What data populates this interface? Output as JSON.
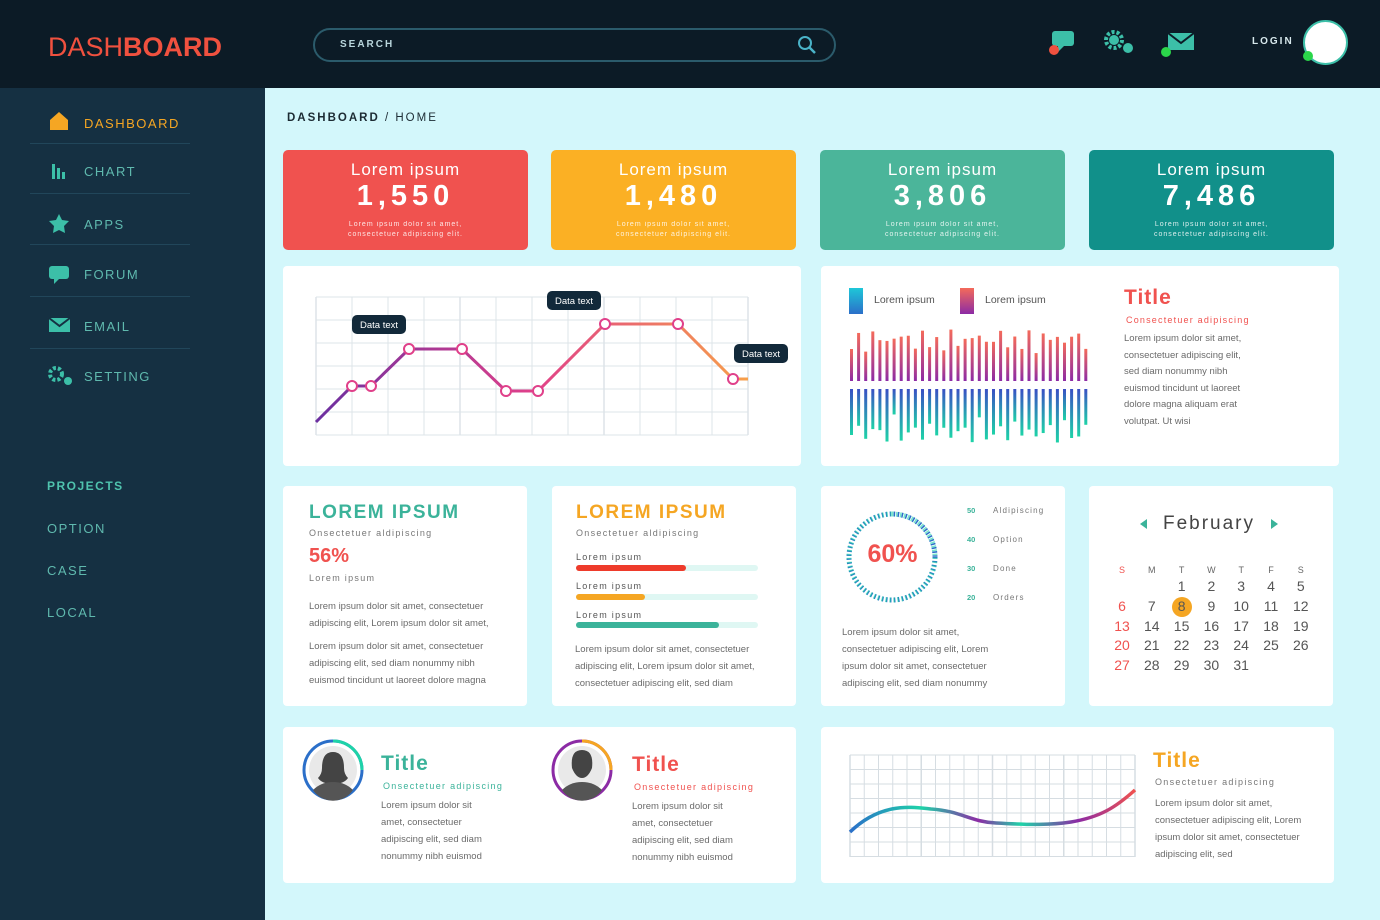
{
  "header": {
    "logo_light": "DASH",
    "logo_bold": "BOARD",
    "search": "SEARCH",
    "login": "LOGIN"
  },
  "sidebar": {
    "menu": [
      "DASHBOARD",
      "CHART",
      "APPS",
      "FORUM",
      "EMAIL",
      "SETTING"
    ],
    "projects_title": "PROJECTS",
    "projects": [
      "OPTION",
      "CASE",
      "LOCAL"
    ]
  },
  "breadcrumb": {
    "root": "DASHBOARD",
    "separator": "/",
    "current": "HOME"
  },
  "stats": [
    {
      "title": "Lorem ipsum",
      "value": "1,550",
      "text": "Lorem ipsum dolor sit amet, consectetuer adipiscing elit."
    },
    {
      "title": "Lorem ipsum",
      "value": "1,480",
      "text": "Lorem ipsum dolor sit amet, consectetuer adipiscing elit."
    },
    {
      "title": "Lorem ipsum",
      "value": "3,806",
      "text": "Lorem ipsum dolor sit amet, consectetuer adipiscing elit."
    },
    {
      "title": "Lorem ipsum",
      "value": "7,486",
      "text": "Lorem ipsum dolor sit amet, consectetuer adipiscing elit."
    }
  ],
  "line_panel": {
    "labels": [
      "Data text",
      "Data text",
      "Data text"
    ]
  },
  "bars_panel": {
    "legend": [
      "Lorem ipsum",
      "Lorem ipsum"
    ],
    "title": "Title",
    "subtitle": "Consectetuer adipiscing",
    "text": "Lorem ipsum dolor sit amet, consectetuer adipiscing elit, sed diam nonummy nibh euismod tincidunt ut laoreet dolore magna aliquam erat volutpat. Ut wisi"
  },
  "card1": {
    "title": "LOREM IPSUM",
    "subtitle": "Onsectetuer aldipiscing",
    "percent": "56%",
    "label": "Lorem ipsum",
    "paragraphs": [
      "Lorem ipsum dolor sit amet, consectetuer adipiscing elit, Lorem ipsum dolor sit amet,",
      "Lorem ipsum dolor sit amet, consectetuer adipiscing elit, sed diam nonummy nibh euismod tincidunt ut laoreet dolore magna"
    ]
  },
  "card2": {
    "title": "LOREM IPSUM",
    "subtitle": "Onsectetuer aldipiscing",
    "bars": [
      "Lorem ipsum",
      "Lorem ipsum",
      "Lorem ipsum"
    ],
    "text": "Lorem ipsum dolor sit amet, consectetuer adipiscing elit, Lorem ipsum dolor sit amet, consectetuer adipiscing elit, sed diam"
  },
  "gauge": {
    "value": "60%",
    "legend": [
      {
        "number": "50",
        "label": "Aldipiscing"
      },
      {
        "number": "40",
        "label": "Option"
      },
      {
        "number": "30",
        "label": "Done"
      },
      {
        "number": "20",
        "label": "Orders"
      }
    ],
    "text": "Lorem ipsum dolor sit amet, consectetuer adipiscing elit, Lorem ipsum dolor sit amet, consectetuer adipiscing elit, sed diam nonummy"
  },
  "calendar": {
    "month": "February",
    "weekdays": [
      "S",
      "M",
      "T",
      "W",
      "T",
      "F",
      "S"
    ],
    "days": [
      1,
      2,
      3,
      4,
      5,
      6,
      7,
      8,
      9,
      10,
      11,
      12,
      13,
      14,
      15,
      16,
      17,
      18,
      19,
      20,
      21,
      22,
      23,
      24,
      25,
      26,
      27,
      28,
      29,
      30,
      31
    ],
    "selected": 8
  },
  "profiles": [
    {
      "title": "Title",
      "subtitle": "Onsectetuer adipiscing",
      "text": "Lorem ipsum dolor sit amet, consectetuer adipiscing elit, sed diam nonummy nibh euismod"
    },
    {
      "title": "Title",
      "subtitle": "Onsectetuer adipiscing",
      "text": "Lorem ipsum dolor sit amet, consectetuer adipiscing elit, sed diam nonummy nibh euismod"
    }
  ],
  "wave_panel": {
    "title": "Title",
    "subtitle": "Onsectetuer adipiscing",
    "text": "Lorem ipsum dolor sit amet, consectetuer adipiscing elit, Lorem ipsum dolor sit amet, consectetuer adipiscing elit, sed"
  }
}
